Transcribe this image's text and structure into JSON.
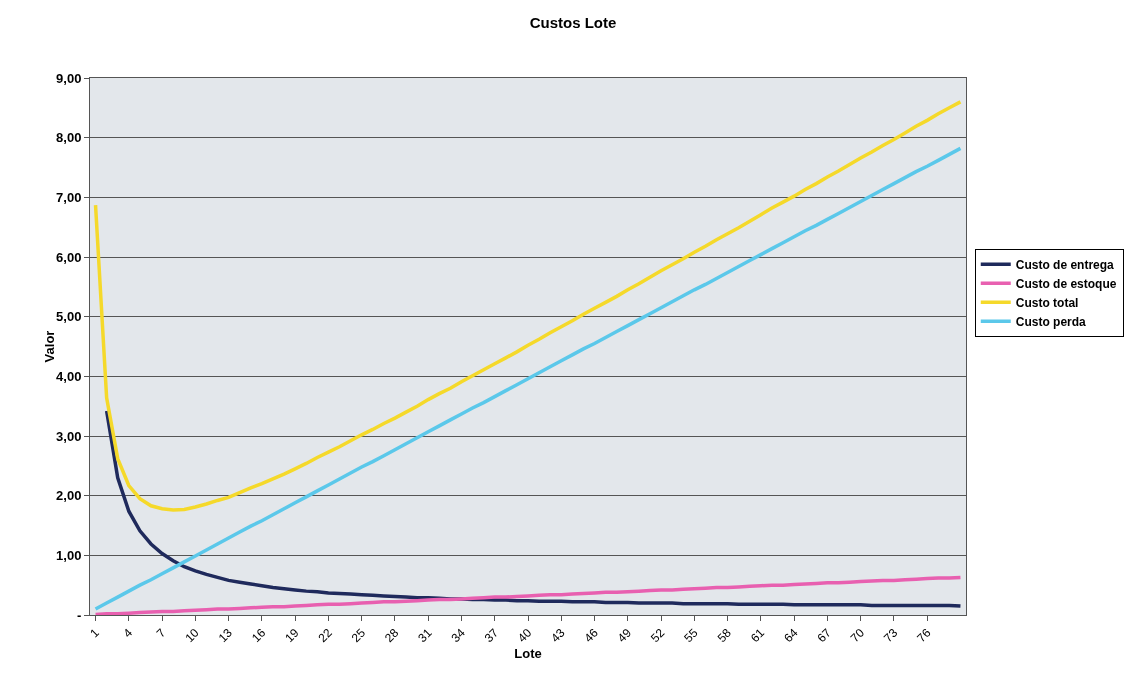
{
  "chart_data": {
    "type": "line",
    "title": "Custos Lote",
    "xlabel": "Lote",
    "ylabel": "Valor",
    "categories": [
      "1",
      null,
      null,
      "4",
      null,
      null,
      "7",
      null,
      null,
      "10",
      null,
      null,
      "13",
      null,
      null,
      "16",
      null,
      null,
      "19",
      null,
      null,
      "22",
      null,
      null,
      "25",
      null,
      null,
      "28",
      null,
      null,
      "31",
      null,
      null,
      "34",
      null,
      null,
      "37",
      null,
      null,
      "40",
      null,
      null,
      "43",
      null,
      null,
      "46",
      null,
      null,
      "49",
      null,
      null,
      "52",
      null,
      null,
      "55",
      null,
      null,
      "58",
      null,
      null,
      "61",
      null,
      null,
      "64",
      null,
      null,
      "67",
      null,
      null,
      "70",
      null,
      null,
      "73",
      null,
      null,
      "76",
      null,
      null,
      null
    ],
    "ylim": [
      0,
      9
    ],
    "yticks": [
      {
        "value": 0,
        "label": "-"
      },
      {
        "value": 1,
        "label": "1,00"
      },
      {
        "value": 2,
        "label": "2,00"
      },
      {
        "value": 3,
        "label": "3,00"
      },
      {
        "value": 4,
        "label": "4,00"
      },
      {
        "value": 5,
        "label": "5,00"
      },
      {
        "value": 6,
        "label": "6,00"
      },
      {
        "value": 7,
        "label": "7,00"
      },
      {
        "value": 8,
        "label": "8,00"
      },
      {
        "value": 9,
        "label": "9,00"
      }
    ],
    "grid": "y",
    "legend": "right",
    "marker": "none",
    "line_style": "solid",
    "series": [
      {
        "name": "Custo de entrega",
        "color": "#1f2a5c",
        "values": [
          null,
          3.42,
          2.3,
          1.74,
          1.41,
          1.19,
          1.03,
          0.91,
          0.81,
          0.74,
          0.68,
          0.63,
          0.58,
          0.55,
          0.52,
          0.49,
          0.46,
          0.44,
          0.42,
          0.4,
          0.39,
          0.37,
          0.36,
          0.35,
          0.34,
          0.33,
          0.32,
          0.31,
          0.3,
          0.29,
          0.29,
          0.28,
          0.27,
          0.27,
          0.26,
          0.26,
          0.25,
          0.25,
          0.24,
          0.24,
          0.23,
          0.23,
          0.23,
          0.22,
          0.22,
          0.22,
          0.21,
          0.21,
          0.21,
          0.2,
          0.2,
          0.2,
          0.2,
          0.19,
          0.19,
          0.19,
          0.19,
          0.19,
          0.18,
          0.18,
          0.18,
          0.18,
          0.18,
          0.17,
          0.17,
          0.17,
          0.17,
          0.17,
          0.17,
          0.17,
          0.16,
          0.16,
          0.16,
          0.16,
          0.16,
          0.16,
          0.16,
          0.16,
          0.15
        ]
      },
      {
        "name": "Custo de estoque",
        "color": "#e860b0",
        "values": [
          0.01,
          0.02,
          0.02,
          0.03,
          0.04,
          0.05,
          0.06,
          0.06,
          0.07,
          0.08,
          0.09,
          0.1,
          0.1,
          0.11,
          0.12,
          0.13,
          0.14,
          0.14,
          0.15,
          0.16,
          0.17,
          0.18,
          0.18,
          0.19,
          0.2,
          0.21,
          0.22,
          0.22,
          0.23,
          0.24,
          0.25,
          0.26,
          0.26,
          0.27,
          0.28,
          0.29,
          0.3,
          0.3,
          0.31,
          0.32,
          0.33,
          0.34,
          0.34,
          0.35,
          0.36,
          0.37,
          0.38,
          0.38,
          0.39,
          0.4,
          0.41,
          0.42,
          0.42,
          0.43,
          0.44,
          0.45,
          0.46,
          0.46,
          0.47,
          0.48,
          0.49,
          0.5,
          0.5,
          0.51,
          0.52,
          0.53,
          0.54,
          0.54,
          0.55,
          0.56,
          0.57,
          0.58,
          0.58,
          0.59,
          0.6,
          0.61,
          0.62,
          0.62,
          0.63
        ]
      },
      {
        "name": "Custo total",
        "color": "#f5d92a",
        "values": [
          6.87,
          3.64,
          2.62,
          2.17,
          1.95,
          1.83,
          1.78,
          1.76,
          1.77,
          1.81,
          1.86,
          1.92,
          1.97,
          2.05,
          2.13,
          2.2,
          2.28,
          2.36,
          2.45,
          2.54,
          2.64,
          2.73,
          2.82,
          2.92,
          3.02,
          3.11,
          3.21,
          3.3,
          3.4,
          3.5,
          3.61,
          3.71,
          3.8,
          3.91,
          4.01,
          4.11,
          4.21,
          4.31,
          4.41,
          4.52,
          4.62,
          4.73,
          4.83,
          4.93,
          5.04,
          5.14,
          5.24,
          5.34,
          5.45,
          5.55,
          5.66,
          5.77,
          5.87,
          5.97,
          6.08,
          6.18,
          6.29,
          6.39,
          6.49,
          6.6,
          6.71,
          6.82,
          6.92,
          7.02,
          7.13,
          7.23,
          7.34,
          7.44,
          7.55,
          7.66,
          7.76,
          7.87,
          7.97,
          8.08,
          8.19,
          8.29,
          8.4,
          8.5,
          8.6
        ]
      },
      {
        "name": "Custo perda",
        "color": "#5bc8ea",
        "values": [
          0.1,
          0.2,
          0.3,
          0.4,
          0.5,
          0.59,
          0.69,
          0.79,
          0.89,
          0.99,
          1.09,
          1.19,
          1.29,
          1.39,
          1.49,
          1.58,
          1.68,
          1.78,
          1.88,
          1.98,
          2.08,
          2.18,
          2.28,
          2.38,
          2.48,
          2.57,
          2.67,
          2.77,
          2.87,
          2.97,
          3.07,
          3.17,
          3.27,
          3.37,
          3.47,
          3.56,
          3.66,
          3.76,
          3.86,
          3.96,
          4.06,
          4.16,
          4.26,
          4.36,
          4.46,
          4.55,
          4.65,
          4.75,
          4.85,
          4.95,
          5.05,
          5.15,
          5.25,
          5.35,
          5.45,
          5.54,
          5.64,
          5.74,
          5.84,
          5.94,
          6.04,
          6.14,
          6.24,
          6.34,
          6.44,
          6.53,
          6.63,
          6.73,
          6.83,
          6.93,
          7.03,
          7.13,
          7.23,
          7.33,
          7.43,
          7.52,
          7.62,
          7.72,
          7.82
        ]
      }
    ]
  }
}
